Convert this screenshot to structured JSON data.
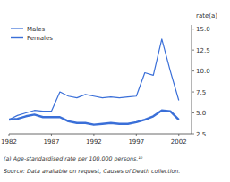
{
  "chart_data": {
    "type": "line",
    "ylabel": "rate(a)",
    "annotations": [
      "(a)  Age-standardised rate per 100,000 persons.¹⁰",
      "Source: Data available on request, Causes of Death collection."
    ],
    "x": [
      1982,
      1983,
      1984,
      1985,
      1986,
      1987,
      1988,
      1989,
      1990,
      1991,
      1992,
      1993,
      1994,
      1995,
      1996,
      1997,
      1998,
      1999,
      2000,
      2001,
      2002
    ],
    "series": [
      {
        "name": "Males",
        "color": "#3a6fd8",
        "values": [
          4.2,
          4.7,
          5.0,
          5.3,
          5.2,
          5.2,
          7.5,
          7.0,
          6.8,
          7.2,
          7.0,
          6.8,
          6.9,
          6.8,
          6.9,
          7.0,
          9.8,
          9.5,
          13.8,
          10.0,
          6.5
        ]
      },
      {
        "name": "Females",
        "color": "#3a6fd8",
        "values": [
          4.2,
          4.3,
          4.6,
          4.8,
          4.5,
          4.5,
          4.5,
          4.0,
          3.8,
          3.8,
          3.6,
          3.7,
          3.8,
          3.7,
          3.7,
          3.9,
          4.2,
          4.6,
          5.3,
          5.2,
          4.2
        ]
      }
    ],
    "xlim": [
      1982,
      2003.5
    ],
    "ylim": [
      2.5,
      15.5
    ],
    "xticks": [
      1982,
      1987,
      1992,
      1997,
      2002
    ],
    "yticks": [
      2.5,
      {
        "value": 5.0,
        "label": "5.0"
      },
      {
        "value": 7.5,
        "label": "7.5"
      },
      {
        "value": 10.0,
        "label": "10.0"
      },
      12.5,
      {
        "value": 15.0,
        "label": "15.0"
      }
    ],
    "grid": false,
    "legend": "upper left"
  }
}
